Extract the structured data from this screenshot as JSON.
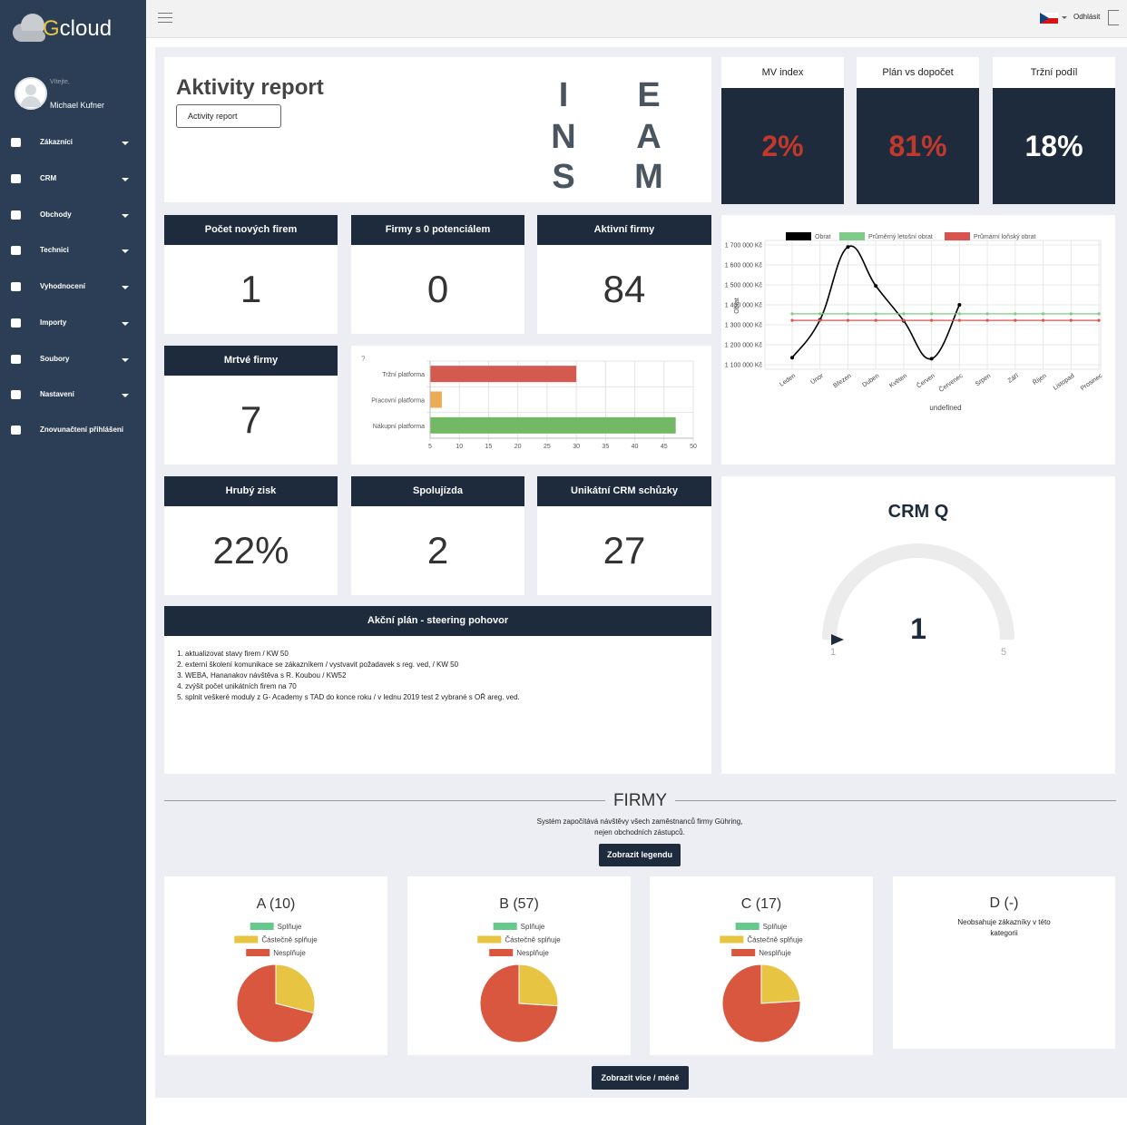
{
  "sidebar": {
    "logo": [
      "G",
      "cloud"
    ],
    "greeting": "Vítejte,",
    "user": "Michael Kufner",
    "menu": [
      "Zákazníci",
      "CRM",
      "Obchody",
      "Technici",
      "Vyhodnocení",
      "Importy",
      "Soubory",
      "Nastavení",
      "Znovunačtení přihlášení"
    ]
  },
  "header": {
    "logout": "Odhlásit"
  },
  "report": {
    "title": "Aktivity report",
    "button": "Activity report",
    "logo_left": [
      "I",
      "N",
      "S"
    ],
    "logo_right": [
      "E",
      "A",
      "M"
    ]
  },
  "kpis_top": [
    {
      "label": "MV index",
      "value": "2%",
      "value_color": "#c0392b"
    },
    {
      "label": "Plán vs dopočet",
      "value": "81%",
      "value_color": "#c0392b"
    },
    {
      "label": "Tržní podíl",
      "value": "18%",
      "value_color": "#ffffff"
    }
  ],
  "tiles": [
    {
      "label": "Počet nových firem",
      "value": 1
    },
    {
      "label": "Firmy s 0 potenciálem",
      "value": 0
    },
    {
      "label": "Aktivní firmy",
      "value": 84
    },
    {
      "label": "Mrtvé firmy",
      "value": 7
    },
    {
      "label": "Hrubý zisk",
      "value": "22%"
    },
    {
      "label": "Spolujízda",
      "value": 2
    },
    {
      "label": "Unikátní CRM schůzky",
      "value": 27
    }
  ],
  "action_plan": {
    "title": "Akční plán - steering pohovor",
    "items": [
      "aktualizovat stavy firem / KW 50",
      "externí školení komunikace se zákazníkem / vystvavit požadavek s reg. ved, / KW 50",
      "WEBA, Hananakov návštěva s R. Koubou / KW52",
      "zvýšit počet unikátních firem na 70",
      "splnit veškeré moduly z G- Academy s TAD do konce roku / v lednu 2019 test 2 vybrané s OŘ areg. ved."
    ]
  },
  "firmy": {
    "title": "FIRMY",
    "description": [
      "Systém započítává návštěvy všech zaměstnanců firmy Gühring,",
      "nejen obchodních zástupců."
    ],
    "legend_button": "Zobrazit legendu",
    "more_button": "Zobrazit více / méně",
    "d_panel": {
      "title": "D (-)",
      "text": "Neobsahuje zákazníky v této kategorii"
    }
  },
  "chart_data": [
    {
      "type": "bar",
      "orientation": "horizontal",
      "title": "?",
      "categories": [
        "Tržní platforma",
        "Pracovní platforma",
        "Nákupní platforma"
      ],
      "values": [
        30,
        7,
        47
      ],
      "colors": [
        "#d45a50",
        "#eeab56",
        "#72b865"
      ],
      "xlim": [
        5,
        50
      ],
      "xticks": [
        5,
        10,
        15,
        20,
        25,
        30,
        35,
        40,
        45,
        50
      ],
      "grid": true
    },
    {
      "type": "line",
      "categories": [
        "Leden",
        "Únor",
        "Březen",
        "Duben",
        "Květen",
        "Červen",
        "Červenec",
        "Srpen",
        "Září",
        "Říjen",
        "Listopad",
        "Prosinec"
      ],
      "series": [
        {
          "name": "Obrat",
          "color": "#000000",
          "values": [
            1135000,
            1325000,
            1690000,
            1495000,
            1320000,
            1130000,
            1400000,
            null,
            null,
            null,
            null,
            null
          ]
        },
        {
          "name": "Průměrný letošní obrat",
          "color": "#7fcc8a",
          "values": [
            1355000,
            1355000,
            1355000,
            1355000,
            1355000,
            1355000,
            1355000,
            1355000,
            1355000,
            1355000,
            1355000,
            1355000
          ]
        },
        {
          "name": "Průmární loňský obrat",
          "color": "#d9534f",
          "values": [
            1322000,
            1322000,
            1322000,
            1322000,
            1322000,
            1322000,
            1322000,
            1322000,
            1322000,
            1322000,
            1322000,
            1322000
          ]
        }
      ],
      "ylim": [
        1100000,
        1700000
      ],
      "yticks": [
        {
          "value": 1100000,
          "label": "1 100 000 Kč"
        },
        {
          "value": 1200000,
          "label": "1 200 000 Kč"
        },
        {
          "value": 1300000,
          "label": "1 300 000 Kč"
        },
        {
          "value": 1400000,
          "label": "1 400 000 Kč"
        },
        {
          "value": 1500000,
          "label": "1 500 000 Kč"
        },
        {
          "value": 1600000,
          "label": "1 600 000 Kč"
        },
        {
          "value": 1700000,
          "label": "1 700 000 Kč"
        }
      ],
      "ylabel": "Obrat",
      "xlabel": "undefined",
      "grid": true,
      "legend": "top"
    },
    {
      "type": "gauge",
      "title": "CRM Q",
      "value": 1,
      "min": 1,
      "max": 5,
      "color": "#1e2b3c",
      "track_color": "#ececec"
    },
    {
      "type": "pie",
      "title": "A (10)",
      "categories": [
        "Splňuje",
        "Částečně splňuje",
        "Nesplňuje"
      ],
      "colors": [
        "#64c98a",
        "#e8c443",
        "#d9573f"
      ],
      "values": [
        0,
        29,
        71
      ]
    },
    {
      "type": "pie",
      "title": "B (57)",
      "categories": [
        "Splňuje",
        "Částečně splňuje",
        "Nesplňuje"
      ],
      "colors": [
        "#64c98a",
        "#e8c443",
        "#d9573f"
      ],
      "values": [
        0,
        26,
        74
      ]
    },
    {
      "type": "pie",
      "title": "C (17)",
      "categories": [
        "Splňuje",
        "Částečně splňuje",
        "Nesplňuje"
      ],
      "colors": [
        "#64c98a",
        "#e8c443",
        "#d9573f"
      ],
      "values": [
        0,
        24,
        76
      ]
    }
  ]
}
